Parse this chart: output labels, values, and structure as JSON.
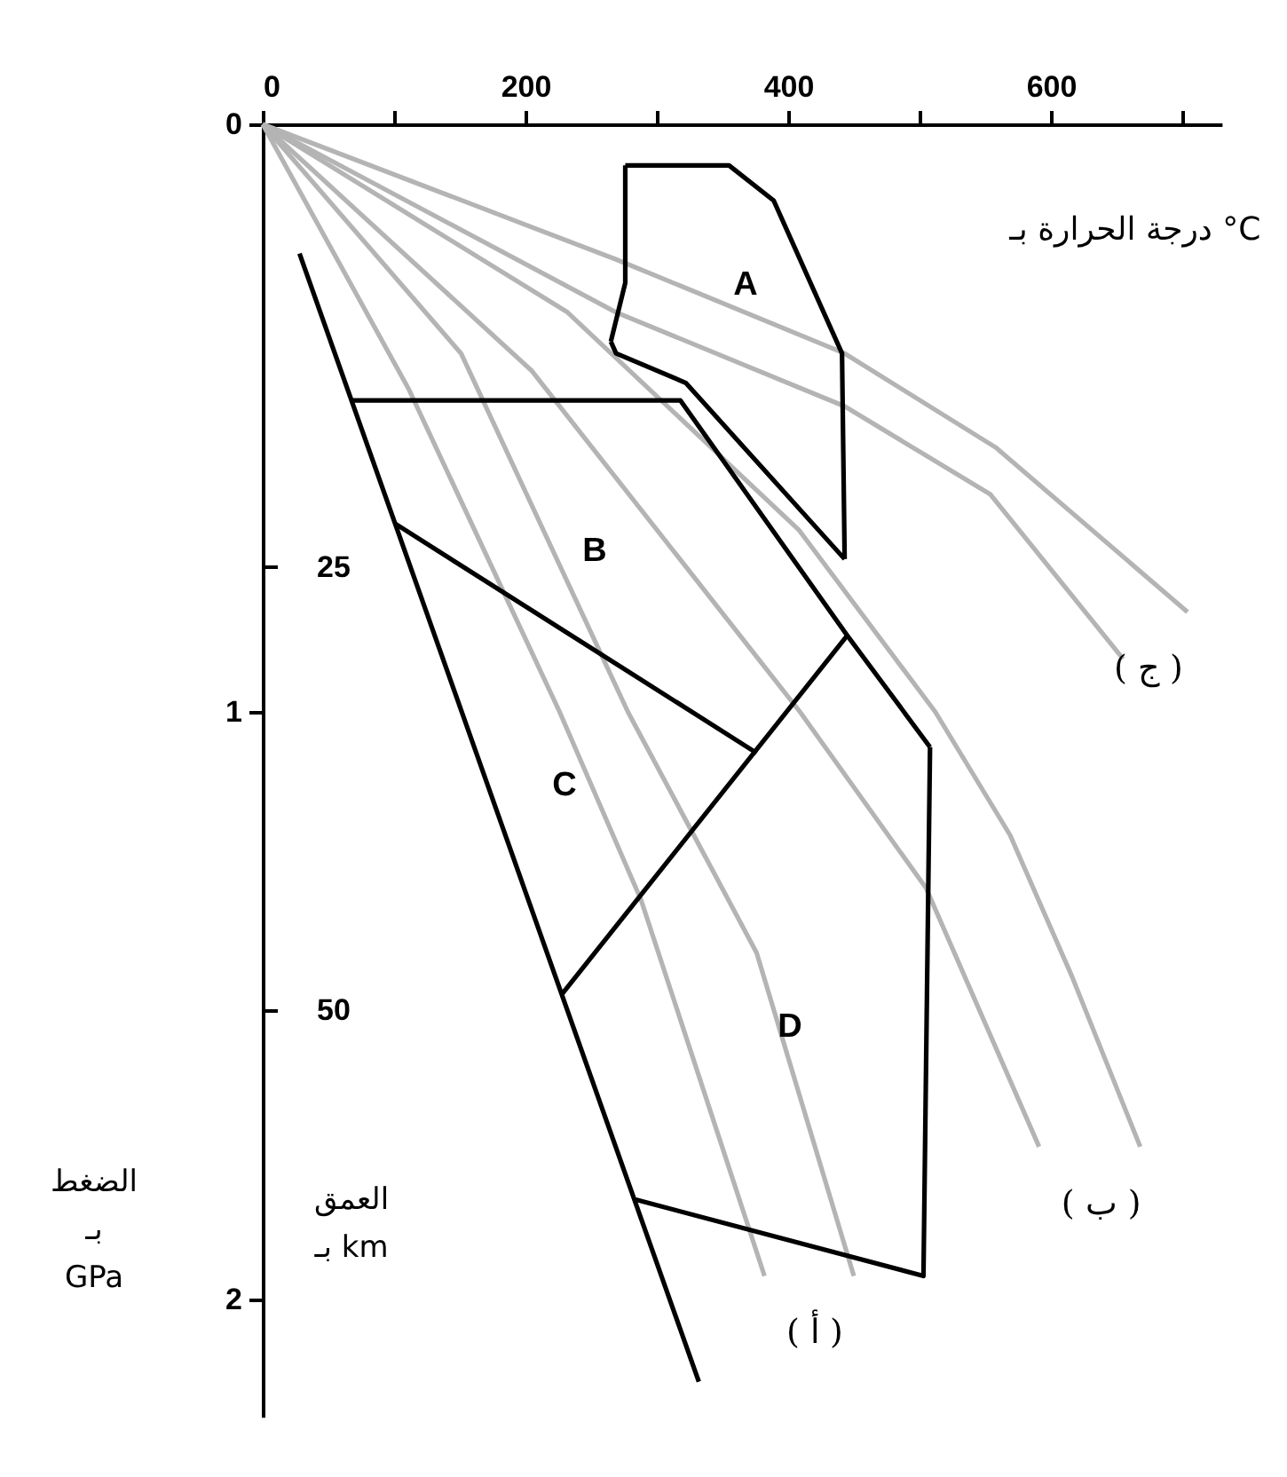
{
  "chart_data": {
    "type": "line",
    "xlabel": "درجة الحرارة بـ °C",
    "ylabel": "الضغط بـ GPa",
    "y2label": "العمق بـ km",
    "xlim": [
      0,
      730
    ],
    "xticks": [
      0,
      {
        "value": 100,
        "label": null
      },
      200,
      {
        "value": 300,
        "label": null
      },
      400,
      {
        "value": 500,
        "label": null
      },
      600,
      {
        "value": 700,
        "label": null
      }
    ],
    "ylim": [
      2.2,
      0
    ],
    "yticks": [
      0,
      1,
      2
    ],
    "y2lim": [
      73,
      0
    ],
    "y2ticks": [
      25,
      50
    ],
    "grid": false,
    "marker": "none",
    "line_style": "solid",
    "series": [
      {
        "name": "( ج )",
        "color": "#b4b4b4",
        "x": [
          0,
          269,
          443,
          558,
          704
        ],
        "values": [
          0,
          0.23,
          0.39,
          0.55,
          0.83
        ]
      },
      {
        "color": "#b4b4b4",
        "x": [
          0,
          269,
          443,
          554,
          655
        ],
        "values": [
          0,
          0.32,
          0.48,
          0.63,
          0.91
        ]
      },
      {
        "name": "( ب )",
        "color": "#b4b4b4",
        "x": [
          0,
          232,
          408,
          512,
          569,
          616,
          668
        ],
        "values": [
          0,
          0.32,
          0.69,
          1.0,
          1.21,
          1.45,
          1.74
        ]
      },
      {
        "color": "#b4b4b4",
        "x": [
          0,
          205,
          409,
          505,
          591
        ],
        "values": [
          0,
          0.42,
          1.0,
          1.3,
          1.74
        ]
      },
      {
        "name": "( أ )",
        "color": "#b4b4b4",
        "x": [
          0,
          151,
          278,
          376,
          450
        ],
        "values": [
          0,
          0.39,
          1.0,
          1.41,
          1.96
        ]
      },
      {
        "color": "#b4b4b4",
        "x": [
          0,
          111,
          226,
          288,
          382
        ],
        "values": [
          0,
          0.45,
          1.0,
          1.32,
          1.96
        ]
      },
      {
        "color": "#000000",
        "x": [
          28,
          332
        ],
        "values": [
          0.22,
          2.14
        ]
      },
      {
        "color": "#000000",
        "x": [
          68,
          318,
          445,
          508
        ],
        "values": [
          0.47,
          0.47,
          0.87,
          1.06
        ]
      },
      {
        "color": "#000000",
        "x": [
          284,
          503,
          508
        ],
        "values": [
          1.83,
          1.96,
          1.06
        ]
      },
      {
        "color": "#000000",
        "x": [
          101,
          376
        ],
        "values": [
          0.68,
          1.07
        ]
      },
      {
        "color": "#000000",
        "x": [
          228,
          445
        ],
        "values": [
          1.48,
          0.87
        ]
      },
      {
        "color": "#000000",
        "x": [
          276,
          355,
          389,
          441,
          443
        ],
        "values": [
          0.07,
          0.07,
          0.13,
          0.39,
          0.74
        ]
      },
      {
        "color": "#000000",
        "x": [
          265,
          269,
          322,
          443
        ],
        "values": [
          0.37,
          0.39,
          0.44,
          0.74
        ]
      },
      {
        "color": "#000000",
        "x": [
          265,
          276,
          276
        ],
        "values": [
          0.37,
          0.27,
          0.07
        ]
      }
    ],
    "annotations": [
      "A",
      "B",
      "C",
      "D"
    ]
  }
}
